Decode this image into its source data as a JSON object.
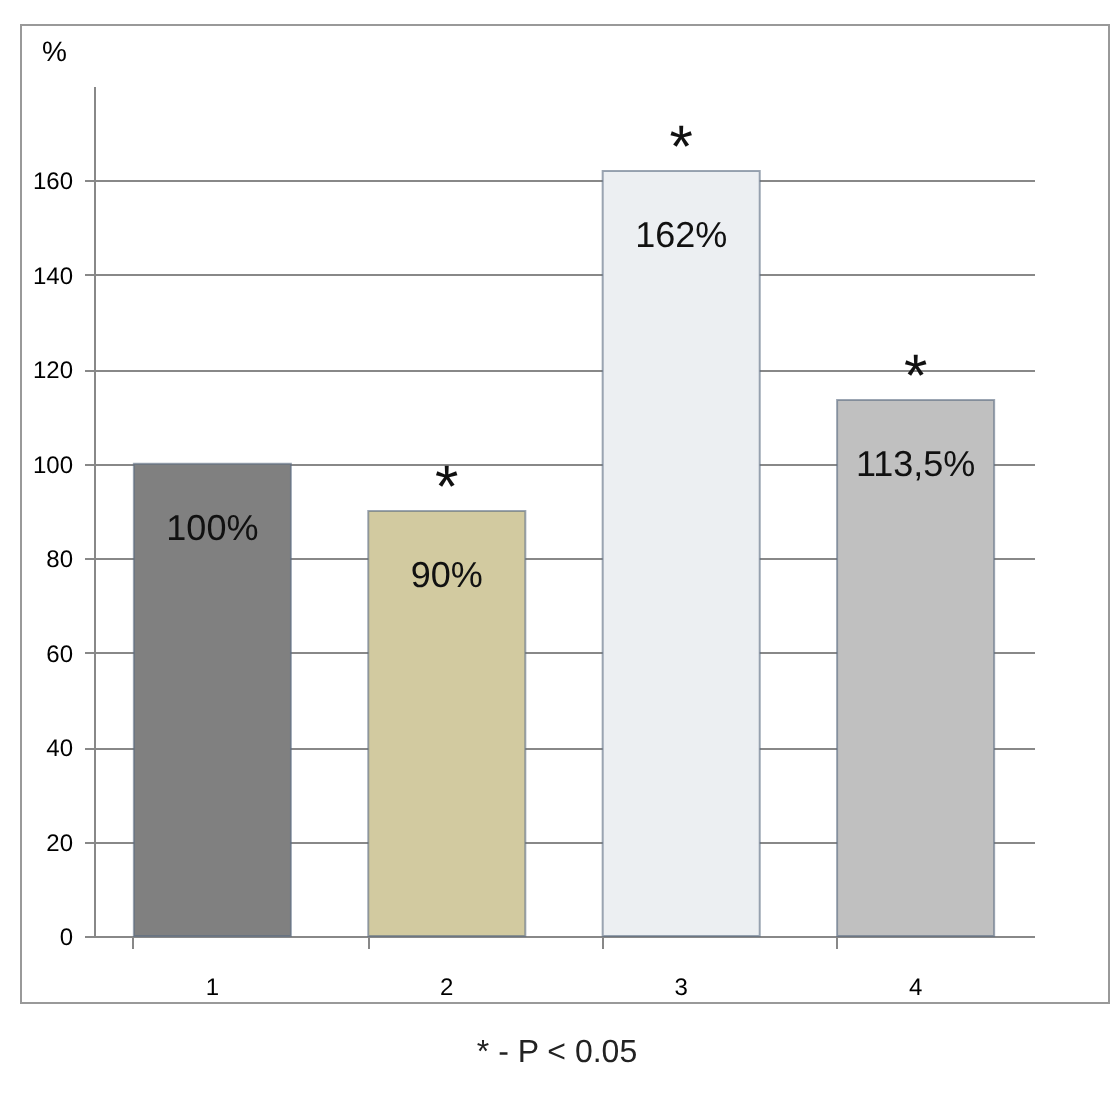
{
  "chart_data": {
    "type": "bar",
    "ylabel": "%",
    "categories": [
      "1",
      "2",
      "3",
      "4"
    ],
    "values": [
      100,
      90,
      162,
      113.5
    ],
    "colors": [
      "#808080",
      "#d2caa0",
      "#eceff2",
      "#c0c0c0"
    ],
    "value_labels": [
      "100%",
      "90%",
      "162%",
      "113,5%"
    ],
    "ylim": [
      0,
      180
    ],
    "yticks": [
      0,
      20,
      40,
      60,
      80,
      100,
      120,
      140,
      160
    ],
    "grid": "y",
    "annotations": [
      {
        "text": "*",
        "x": "2",
        "y": 90
      },
      {
        "text": "*",
        "x": "3",
        "y": 162
      },
      {
        "text": "*",
        "x": "4",
        "y": 113.5
      },
      "* - P < 0.05"
    ]
  }
}
